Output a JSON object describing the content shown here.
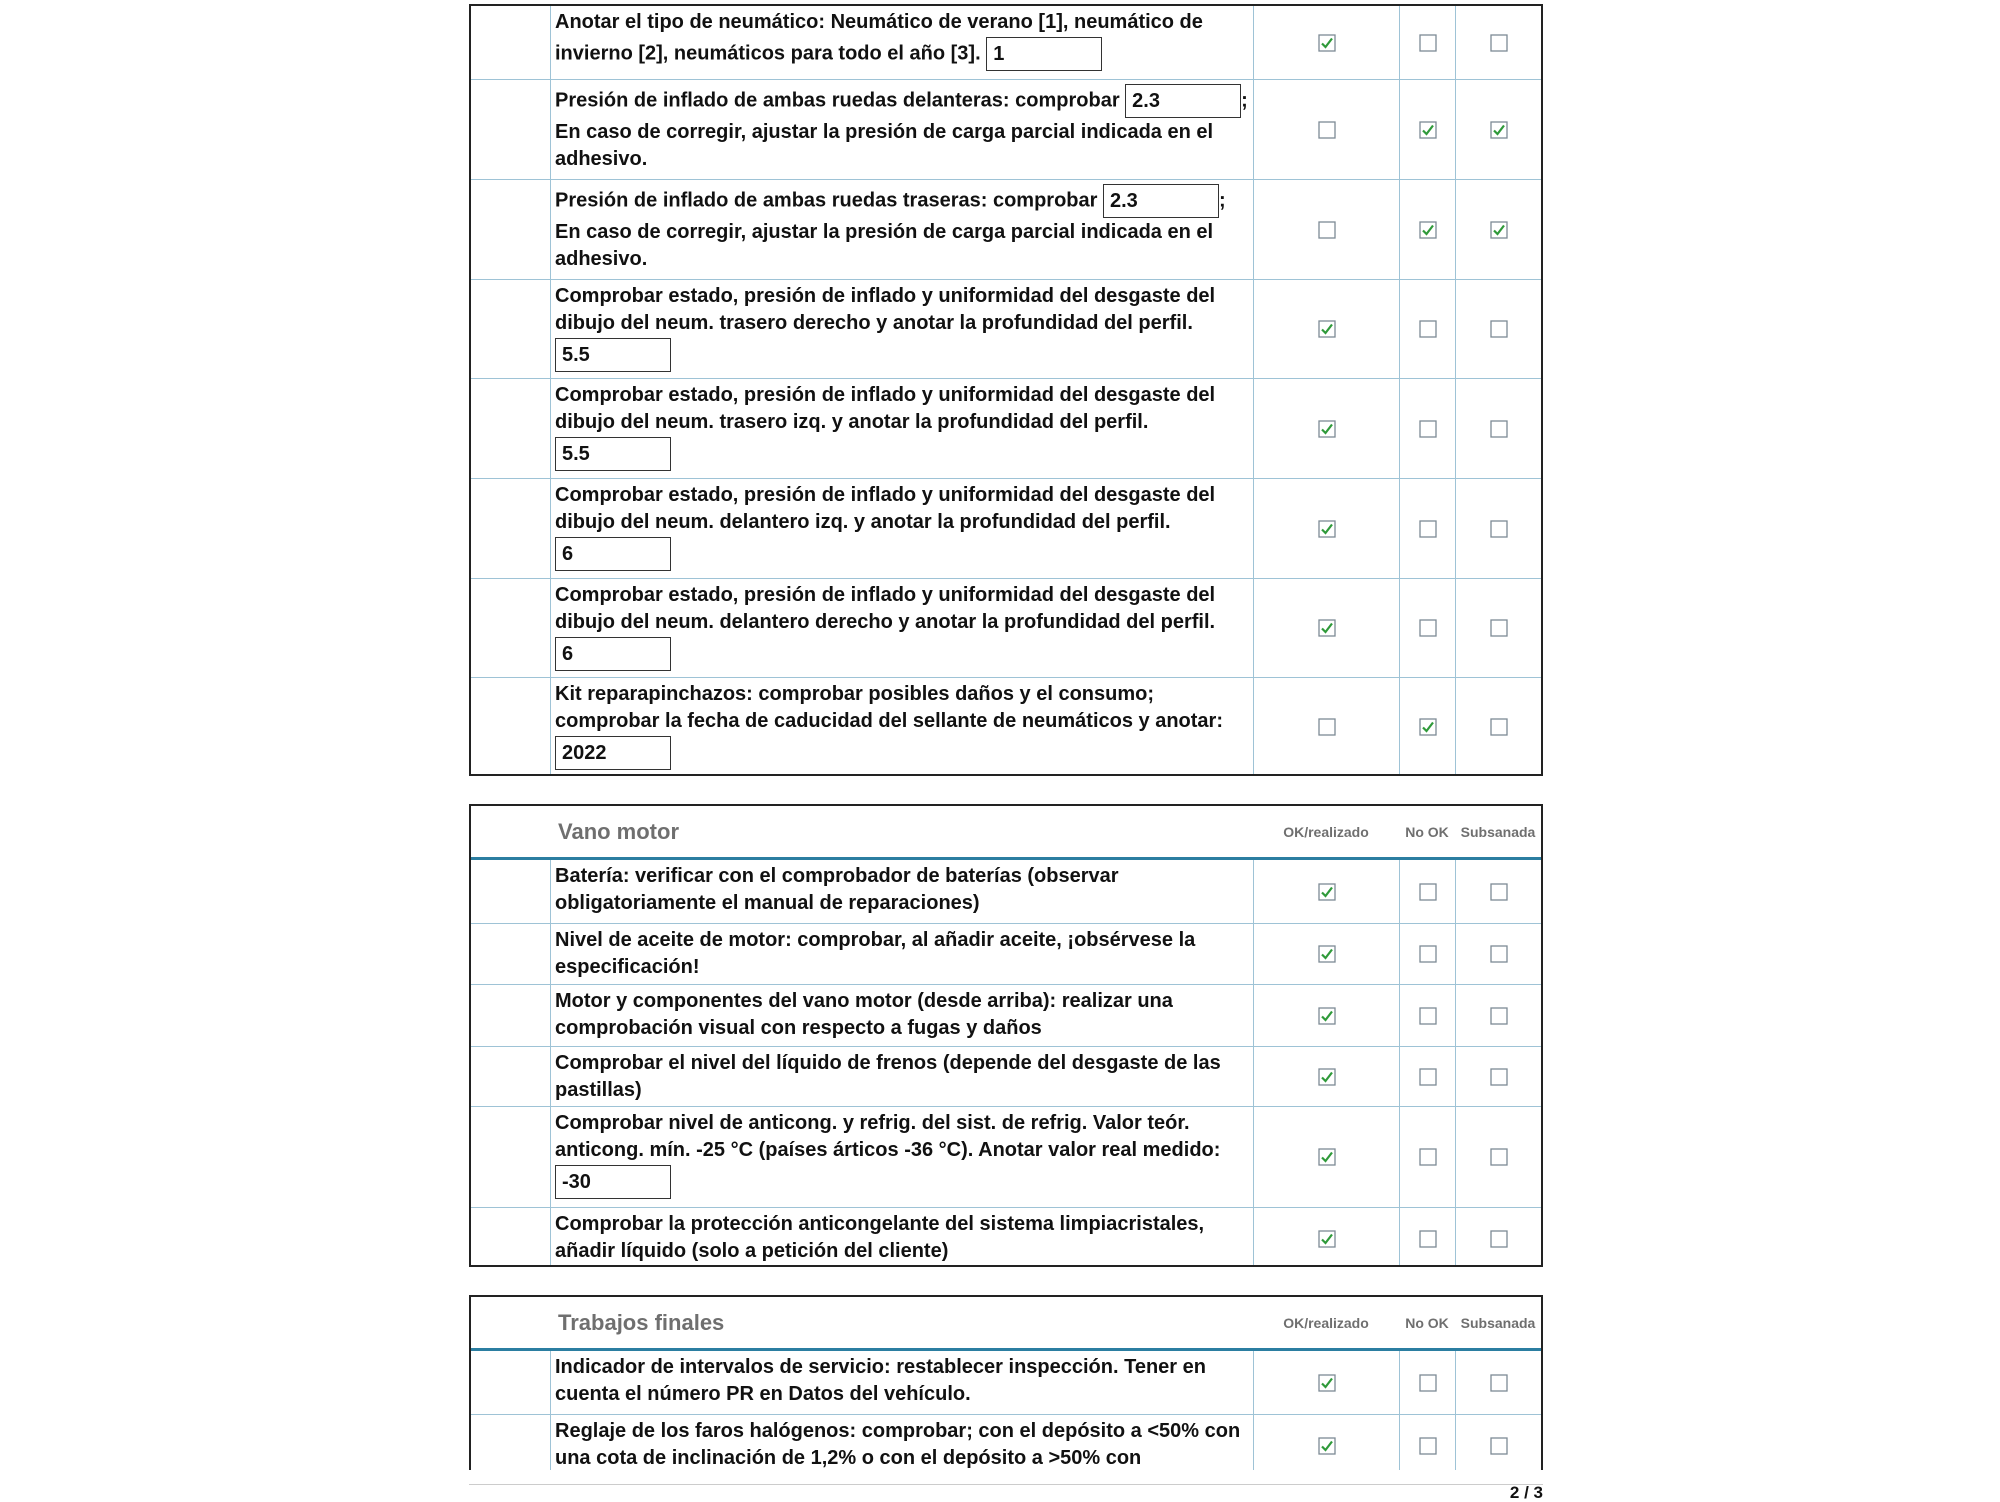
{
  "sections": [
    {
      "rows": [
        {
          "text": "Anotar el tipo de neumático: Neumático de verano [1], neumático de invierno [2], neumáticos para todo el año [3].",
          "input": "1",
          "checks": [
            true,
            false,
            false
          ]
        },
        {
          "text": "Presión de inflado de ambas ruedas delanteras: comprobar",
          "input": "2.3",
          "after": "; En caso de corregir, ajustar la presión de carga parcial indicada en el adhesivo.",
          "checks": [
            false,
            true,
            true
          ]
        },
        {
          "text": "Presión de inflado de ambas ruedas traseras: comprobar",
          "input": "2.3",
          "after": "; En caso de corregir, ajustar la presión de carga parcial indicada en el adhesivo.",
          "checks": [
            false,
            true,
            true
          ]
        },
        {
          "text": "Comprobar estado, presión de inflado y uniformidad del desgaste del dibujo del neum. trasero derecho y anotar la profundidad del perfil.",
          "input": "5.5",
          "checks": [
            true,
            false,
            false
          ]
        },
        {
          "text": "Comprobar estado, presión de inflado y uniformidad del desgaste del dibujo del neum. trasero izq. y anotar la profundidad del perfil.",
          "input": "5.5",
          "checks": [
            true,
            false,
            false
          ]
        },
        {
          "text": "Comprobar estado, presión de inflado y uniformidad del desgaste del dibujo del neum. delantero izq. y anotar la profundidad del perfil.",
          "input": "6",
          "checks": [
            true,
            false,
            false
          ]
        },
        {
          "text": "Comprobar estado, presión de inflado y uniformidad del desgaste del dibujo del neum. delantero derecho y anotar la profundidad del perfil.",
          "input": "6",
          "checks": [
            true,
            false,
            false
          ]
        },
        {
          "text": "Kit reparapinchazos: comprobar posibles daños y el consumo; comprobar la fecha de caducidad del sellante de neumáticos y anotar:",
          "input": "2022",
          "checks": [
            false,
            true,
            false
          ]
        }
      ]
    },
    {
      "title": "Vano motor",
      "headers": [
        "OK/realizado",
        "No OK",
        "Subsanada"
      ],
      "rows": [
        {
          "text": "Batería: verificar con el comprobador de baterías (observar obligatoriamente el manual de reparaciones)",
          "checks": [
            true,
            false,
            false
          ]
        },
        {
          "text": "Nivel de aceite de motor: comprobar, al añadir aceite, ¡obsérvese la especificación!",
          "checks": [
            true,
            false,
            false
          ]
        },
        {
          "text": "Motor y componentes del vano motor (desde arriba): realizar una comprobación visual con respecto a fugas y daños",
          "checks": [
            true,
            false,
            false
          ]
        },
        {
          "text": "Comprobar el nivel del líquido de frenos (depende del desgaste de las pastillas)",
          "checks": [
            true,
            false,
            false
          ]
        },
        {
          "text": "Comprobar nivel de anticong. y refrig. del sist. de refrig. Valor teór. anticong. mín. -25 °C (países árticos -36 °C). Anotar valor real medido:",
          "input": "-30",
          "checks": [
            true,
            false,
            false
          ]
        },
        {
          "text": "Comprobar la protección anticongelante del sistema limpiacristales, añadir líquido (solo a petición del cliente)",
          "checks": [
            true,
            false,
            false
          ]
        }
      ]
    },
    {
      "title": "Trabajos finales",
      "headers": [
        "OK/realizado",
        "No OK",
        "Subsanada"
      ],
      "rows": [
        {
          "text": "Indicador de intervalos de servicio: restablecer inspección. Tener en cuenta el número PR en Datos del vehículo.",
          "checks": [
            true,
            false,
            false
          ]
        },
        {
          "text": "Reglaje de los faros halógenos: comprobar; con el depósito a <50% con una cota de inclinación de 1,2% o con el depósito a >50% con",
          "checks": [
            true,
            false,
            false
          ]
        }
      ]
    }
  ],
  "footer": {
    "page": "2 / 3"
  }
}
